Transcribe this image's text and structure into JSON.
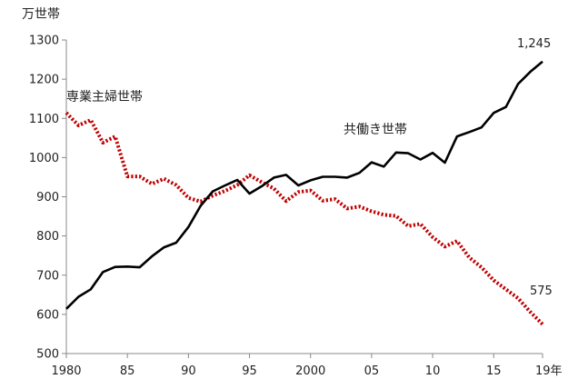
{
  "chart_data": {
    "type": "line",
    "y_unit": "万世帯",
    "x_end_suffix": "年",
    "ylim": [
      500,
      1300
    ],
    "yticks": [
      500,
      600,
      700,
      800,
      900,
      1000,
      1100,
      1200,
      1300
    ],
    "xlim": [
      1980,
      2019
    ],
    "xticks": [
      {
        "value": 1980,
        "label": "1980"
      },
      {
        "value": 1985,
        "label": "85"
      },
      {
        "value": 1990,
        "label": "90"
      },
      {
        "value": 1995,
        "label": "95"
      },
      {
        "value": 2000,
        "label": "2000"
      },
      {
        "value": 2005,
        "label": "05"
      },
      {
        "value": 2010,
        "label": "10"
      },
      {
        "value": 2015,
        "label": "15"
      },
      {
        "value": 2019,
        "label": "19"
      }
    ],
    "grid": false,
    "x": [
      1980,
      1981,
      1982,
      1983,
      1984,
      1985,
      1986,
      1987,
      1988,
      1989,
      1990,
      1991,
      1992,
      1993,
      1994,
      1995,
      1996,
      1997,
      1998,
      1999,
      2000,
      2001,
      2002,
      2003,
      2004,
      2005,
      2006,
      2007,
      2008,
      2009,
      2010,
      2011,
      2012,
      2013,
      2014,
      2015,
      2016,
      2017,
      2018,
      2019
    ],
    "series": [
      {
        "name": "専業主婦世帯",
        "color": "#c00000",
        "style": "dotted",
        "values": [
          1114,
          1082,
          1096,
          1038,
          1054,
          952,
          952,
          933,
          946,
          930,
          897,
          888,
          903,
          915,
          930,
          955,
          937,
          921,
          889,
          912,
          916,
          890,
          894,
          870,
          875,
          863,
          854,
          851,
          825,
          831,
          797,
          773,
          787,
          745,
          720,
          687,
          664,
          641,
          606,
          575
        ]
      },
      {
        "name": "共働き世帯",
        "color": "#000000",
        "style": "solid",
        "values": [
          614,
          645,
          664,
          708,
          721,
          722,
          720,
          748,
          771,
          783,
          823,
          877,
          914,
          929,
          943,
          908,
          927,
          949,
          956,
          929,
          942,
          951,
          951,
          949,
          961,
          988,
          977,
          1013,
          1011,
          995,
          1012,
          987,
          1054,
          1065,
          1077,
          1114,
          1129,
          1188,
          1219,
          1245
        ]
      }
    ],
    "annotations": {
      "last_value_labels": [
        "1,245",
        "575"
      ]
    }
  }
}
